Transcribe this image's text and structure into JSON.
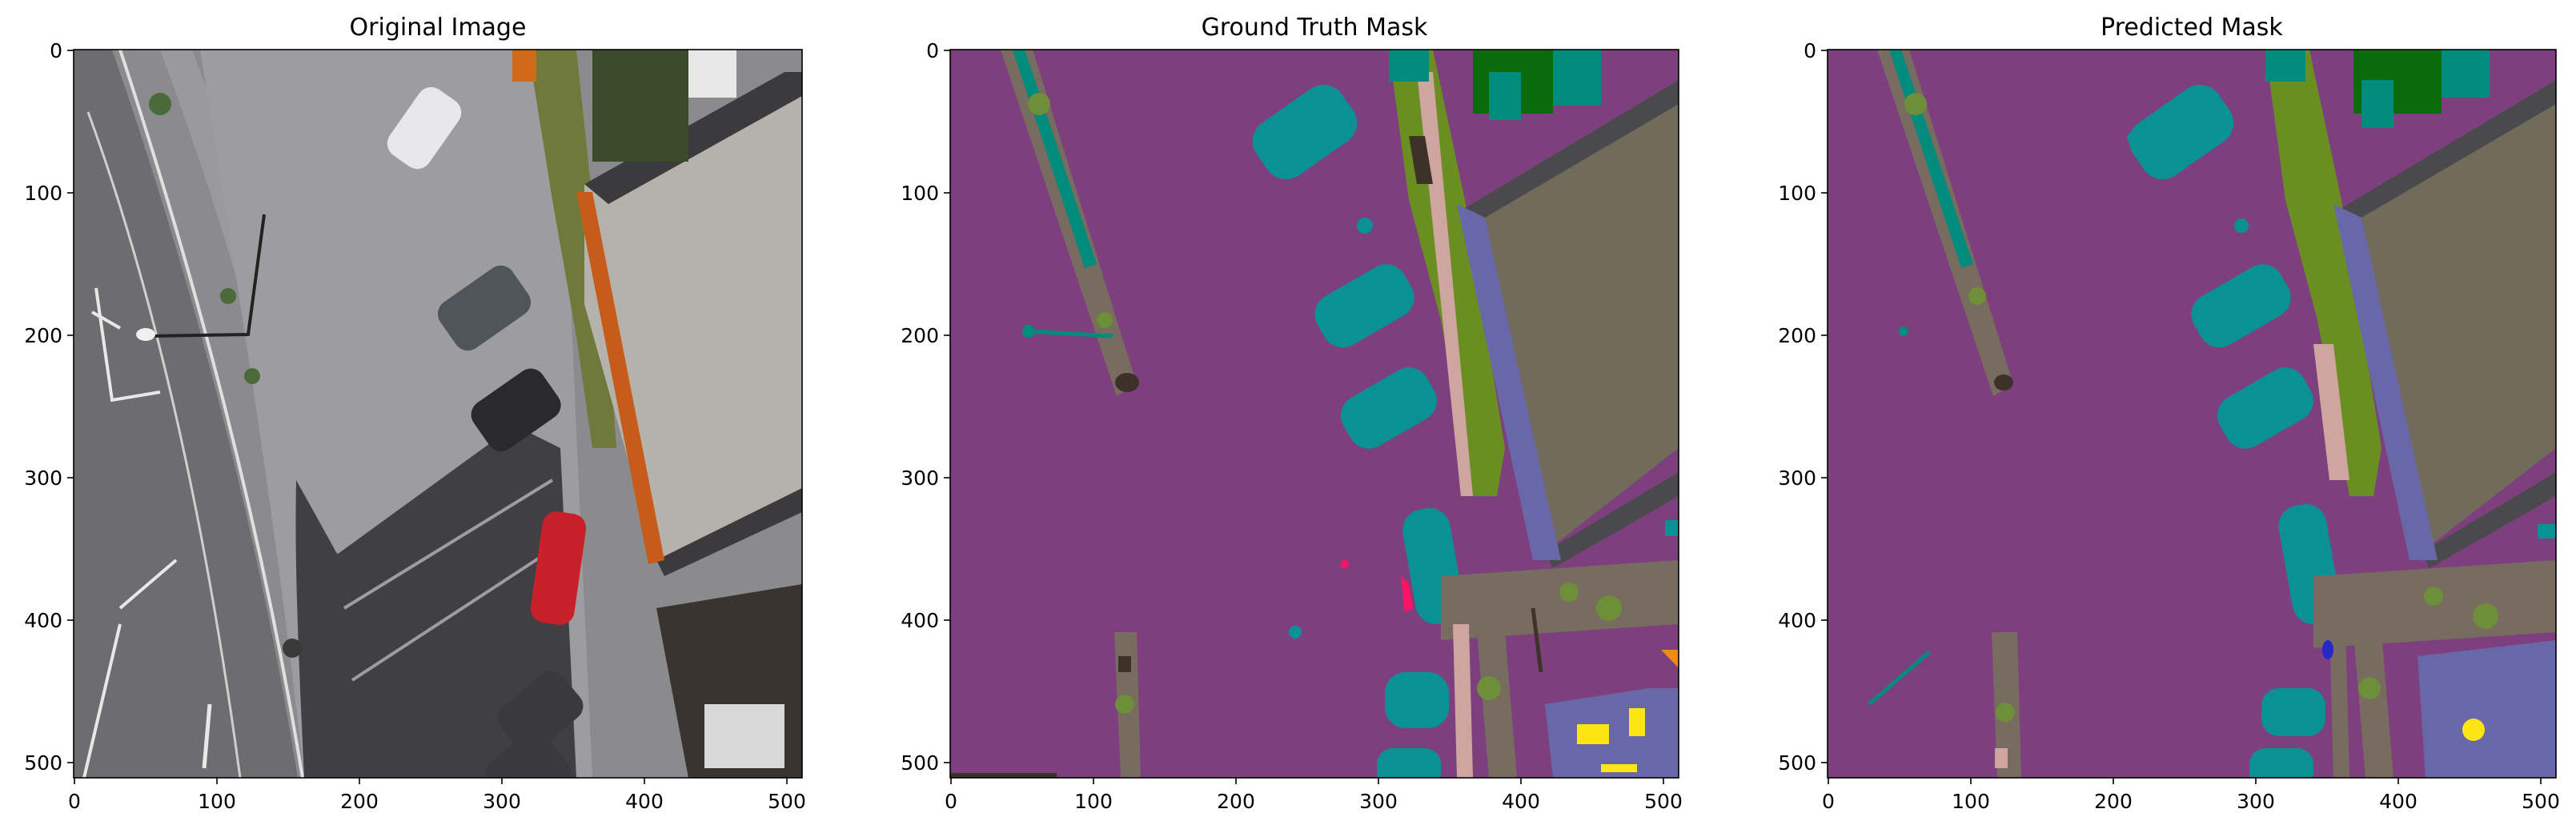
{
  "figure": {
    "panels": [
      {
        "title": "Original Image",
        "kind": "photo"
      },
      {
        "title": "Ground Truth Mask",
        "kind": "gt"
      },
      {
        "title": "Predicted Mask",
        "kind": "pred"
      }
    ],
    "x_ticks": [
      "0",
      "100",
      "200",
      "300",
      "400",
      "500"
    ],
    "y_ticks": [
      "0",
      "100",
      "200",
      "300",
      "400",
      "500"
    ],
    "class_colors": {
      "paved_area": "#7e3f7f",
      "vegetation": "#6b8e23",
      "grass": "#6e8e3a",
      "gravel": "#786c60",
      "car": "#0a9196",
      "roof": "#726b5b",
      "wall": "#6868a8",
      "tree": "#0b6a0b",
      "rocks": "#008c7c",
      "person": "#ff1464",
      "fence": "#cfa5a0",
      "obstacle": "#3c3228",
      "window": "#ffe414",
      "bicycle": "#2828c8",
      "door": "#f08a14",
      "roof_edge": "#4a4a4c"
    }
  }
}
